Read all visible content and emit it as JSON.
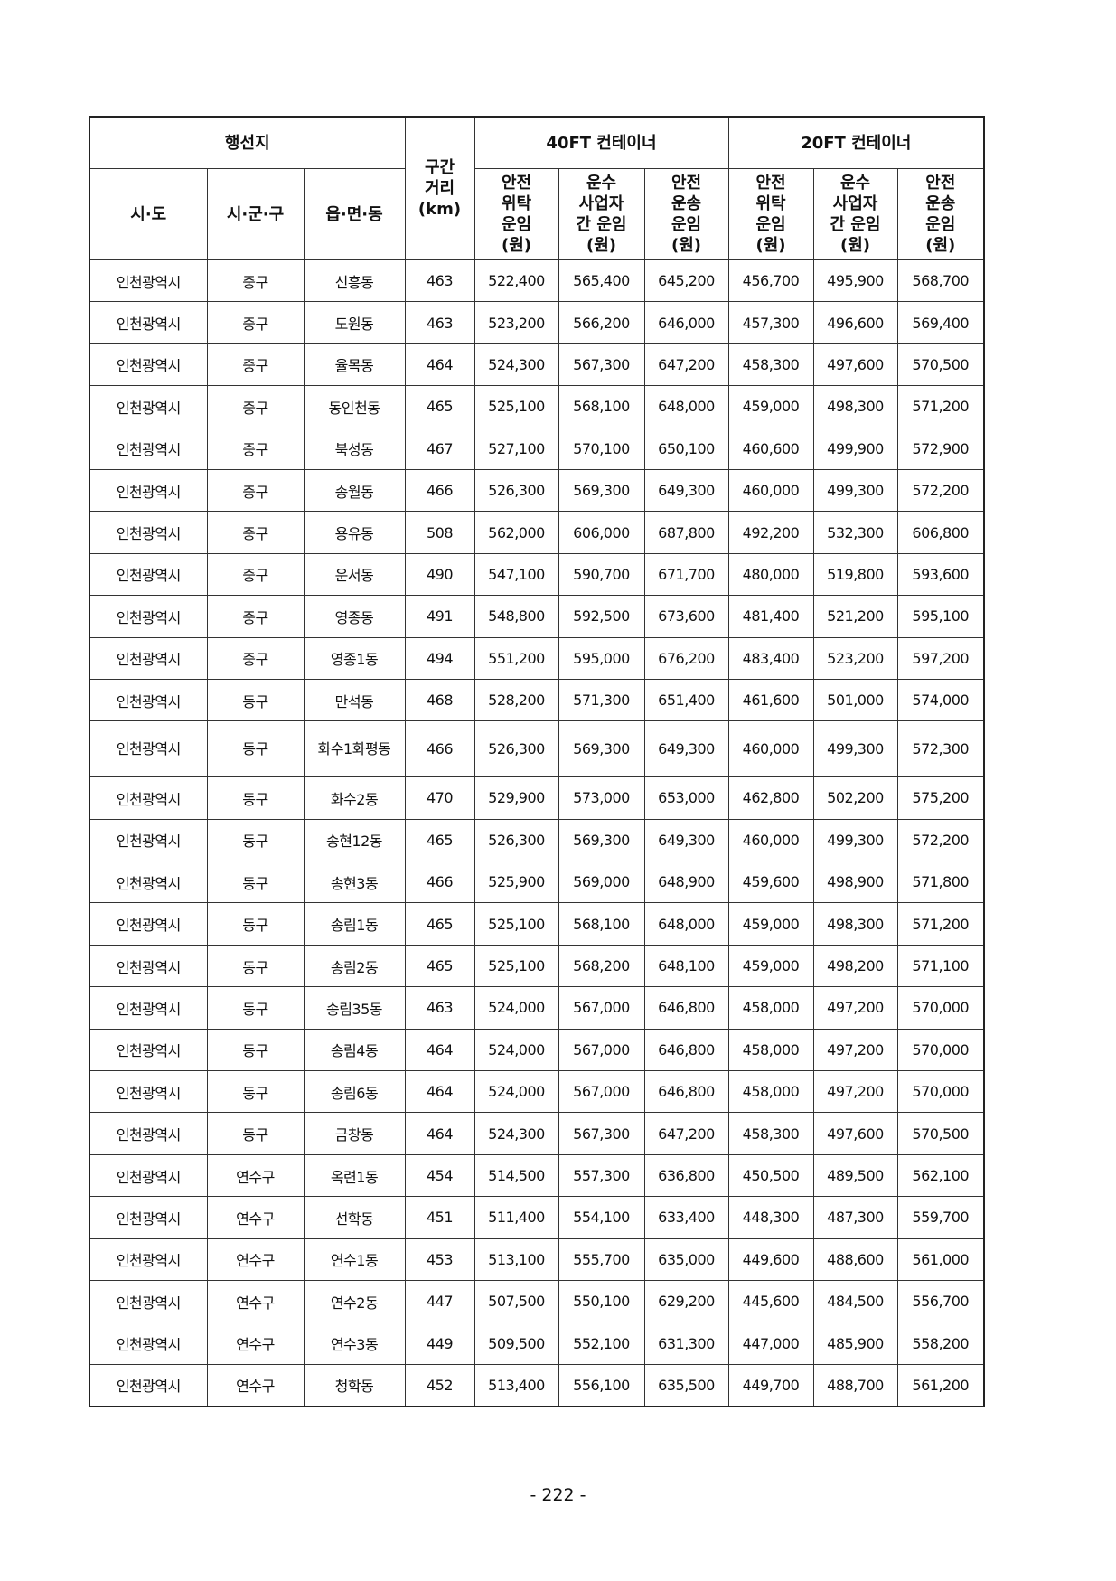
{
  "header": {
    "destination": "행선지",
    "distance": "구간\n거리\n(km)",
    "group40": "40FT 컨테이너",
    "group20": "20FT 컨테이너",
    "sido": "시·도",
    "sigungu": "시·군·구",
    "eupmyeondong": "읍·면·동",
    "rate_cols": [
      "안전\n위탁\n운임\n(원)",
      "운수\n사업자\n간 운임\n(원)",
      "안전\n운송\n운임\n(원)",
      "안전\n위탁\n운임\n(원)",
      "운수\n사업자\n간 운임\n(원)",
      "안전\n운송\n운임\n(원)"
    ]
  },
  "rows": [
    [
      "인천광역시",
      "중구",
      "신흥동",
      "463",
      "522,400",
      "565,400",
      "645,200",
      "456,700",
      "495,900",
      "568,700"
    ],
    [
      "인천광역시",
      "중구",
      "도원동",
      "463",
      "523,200",
      "566,200",
      "646,000",
      "457,300",
      "496,600",
      "569,400"
    ],
    [
      "인천광역시",
      "중구",
      "율목동",
      "464",
      "524,300",
      "567,300",
      "647,200",
      "458,300",
      "497,600",
      "570,500"
    ],
    [
      "인천광역시",
      "중구",
      "동인천동",
      "465",
      "525,100",
      "568,100",
      "648,000",
      "459,000",
      "498,300",
      "571,200"
    ],
    [
      "인천광역시",
      "중구",
      "북성동",
      "467",
      "527,100",
      "570,100",
      "650,100",
      "460,600",
      "499,900",
      "572,900"
    ],
    [
      "인천광역시",
      "중구",
      "송월동",
      "466",
      "526,300",
      "569,300",
      "649,300",
      "460,000",
      "499,300",
      "572,200"
    ],
    [
      "인천광역시",
      "중구",
      "용유동",
      "508",
      "562,000",
      "606,000",
      "687,800",
      "492,200",
      "532,300",
      "606,800"
    ],
    [
      "인천광역시",
      "중구",
      "운서동",
      "490",
      "547,100",
      "590,700",
      "671,700",
      "480,000",
      "519,800",
      "593,600"
    ],
    [
      "인천광역시",
      "중구",
      "영종동",
      "491",
      "548,800",
      "592,500",
      "673,600",
      "481,400",
      "521,200",
      "595,100"
    ],
    [
      "인천광역시",
      "중구",
      "영종1동",
      "494",
      "551,200",
      "595,000",
      "676,200",
      "483,400",
      "523,200",
      "597,200"
    ],
    [
      "인천광역시",
      "동구",
      "만석동",
      "468",
      "528,200",
      "571,300",
      "651,400",
      "461,600",
      "501,000",
      "574,000"
    ],
    [
      "인천광역시",
      "동구",
      "화수1화평동",
      "466",
      "526,300",
      "569,300",
      "649,300",
      "460,000",
      "499,300",
      "572,300"
    ],
    [
      "인천광역시",
      "동구",
      "화수2동",
      "470",
      "529,900",
      "573,000",
      "653,000",
      "462,800",
      "502,200",
      "575,200"
    ],
    [
      "인천광역시",
      "동구",
      "송현12동",
      "465",
      "526,300",
      "569,300",
      "649,300",
      "460,000",
      "499,300",
      "572,200"
    ],
    [
      "인천광역시",
      "동구",
      "송현3동",
      "466",
      "525,900",
      "569,000",
      "648,900",
      "459,600",
      "498,900",
      "571,800"
    ],
    [
      "인천광역시",
      "동구",
      "송림1동",
      "465",
      "525,100",
      "568,100",
      "648,000",
      "459,000",
      "498,300",
      "571,200"
    ],
    [
      "인천광역시",
      "동구",
      "송림2동",
      "465",
      "525,100",
      "568,200",
      "648,100",
      "459,000",
      "498,200",
      "571,100"
    ],
    [
      "인천광역시",
      "동구",
      "송림35동",
      "463",
      "524,000",
      "567,000",
      "646,800",
      "458,000",
      "497,200",
      "570,000"
    ],
    [
      "인천광역시",
      "동구",
      "송림4동",
      "464",
      "524,000",
      "567,000",
      "646,800",
      "458,000",
      "497,200",
      "570,000"
    ],
    [
      "인천광역시",
      "동구",
      "송림6동",
      "464",
      "524,000",
      "567,000",
      "646,800",
      "458,000",
      "497,200",
      "570,000"
    ],
    [
      "인천광역시",
      "동구",
      "금창동",
      "464",
      "524,300",
      "567,300",
      "647,200",
      "458,300",
      "497,600",
      "570,500"
    ],
    [
      "인천광역시",
      "연수구",
      "옥련1동",
      "454",
      "514,500",
      "557,300",
      "636,800",
      "450,500",
      "489,500",
      "562,100"
    ],
    [
      "인천광역시",
      "연수구",
      "선학동",
      "451",
      "511,400",
      "554,100",
      "633,400",
      "448,300",
      "487,300",
      "559,700"
    ],
    [
      "인천광역시",
      "연수구",
      "연수1동",
      "453",
      "513,100",
      "555,700",
      "635,000",
      "449,600",
      "488,600",
      "561,000"
    ],
    [
      "인천광역시",
      "연수구",
      "연수2동",
      "447",
      "507,500",
      "550,100",
      "629,200",
      "445,600",
      "484,500",
      "556,700"
    ],
    [
      "인천광역시",
      "연수구",
      "연수3동",
      "449",
      "509,500",
      "552,100",
      "631,300",
      "447,000",
      "485,900",
      "558,200"
    ],
    [
      "인천광역시",
      "연수구",
      "청학동",
      "452",
      "513,400",
      "556,100",
      "635,500",
      "449,700",
      "488,700",
      "561,200"
    ]
  ],
  "page_number": "- 222 -"
}
